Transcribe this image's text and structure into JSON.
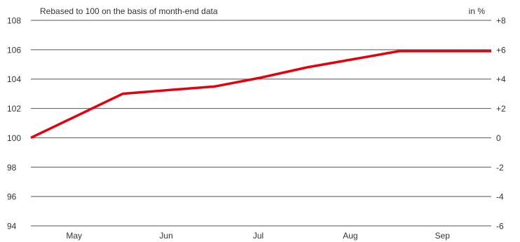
{
  "chart_data": {
    "type": "line",
    "subtitle": "Rebased to 100 on the basis of month-end data",
    "right_axis_unit": "in %",
    "x_tick_labels": [
      "May",
      "Jun",
      "Jul",
      "Aug",
      "Sep"
    ],
    "x_domain": [
      0,
      5
    ],
    "ylim": [
      94,
      108
    ],
    "y_ticks": [
      94,
      96,
      98,
      100,
      102,
      104,
      106,
      108
    ],
    "y_tick_labels": [
      "94",
      "96",
      "98",
      "100",
      "102",
      "104",
      "106",
      "108"
    ],
    "y2_ticks": [
      -6,
      -4,
      -2,
      0,
      2,
      4,
      6,
      8
    ],
    "y2_tick_labels": [
      "-6",
      "-4",
      "-2",
      "0",
      "+2",
      "+4",
      "+6",
      "+8"
    ],
    "grid": true,
    "series": [
      {
        "color": "#e3000f",
        "x": [
          0,
          1,
          2,
          2.5,
          3,
          4,
          5
        ],
        "values": [
          100,
          103.0,
          103.5,
          104.1,
          104.8,
          105.9,
          105.9
        ]
      }
    ]
  }
}
